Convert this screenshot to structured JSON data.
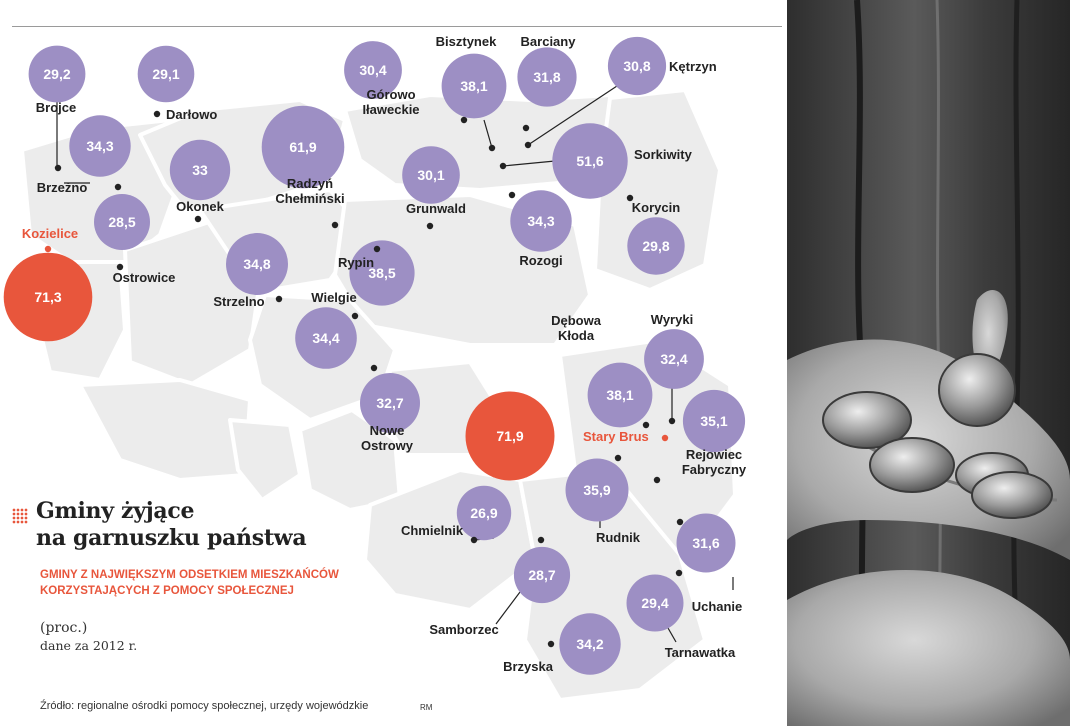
{
  "header": {
    "title_line1": "Gminy żyjące",
    "title_line2": "na garnuszku państwa",
    "subtitle": "GMINY Z NAJWIĘKSZYM ODSETKIEM MIESZKAŃCÓW KORZYSTAJĄCYCH Z POMOCY SPOŁECZNEJ",
    "unit": "(proc.)",
    "year_note": "dane za 2012 r."
  },
  "footer": {
    "source": "Źródło: regionalne ośrodki pomocy społecznej, urzędy wojewódzkie",
    "credit": "RM"
  },
  "colors": {
    "bubble": "#9d8fc4",
    "highlight": "#e8563c",
    "map_region": "#ececec",
    "label": "#222222"
  },
  "chart_data": {
    "type": "bubble-map",
    "title": "Gminy żyjące na garnuszku państwa",
    "subtitle": "GMINY Z NAJWIĘKSZYM ODSETKIEM MIESZKAŃCÓW KORZYSTAJĄCYCH Z POMOCY SPOŁECZNEJ",
    "unit": "proc.",
    "year": "2012",
    "series": [
      {
        "label": "Brojce",
        "value": "29,2"
      },
      {
        "label": "Darłowo",
        "value": "29,1"
      },
      {
        "label": "Brzeżno",
        "value": "34,3"
      },
      {
        "label": "Okonek",
        "value": "33"
      },
      {
        "label": "Ostrowice",
        "value": "28,5"
      },
      {
        "label": "Kozielice",
        "value": "71,3",
        "highlight": true
      },
      {
        "label": "Radzyń Chełmiński",
        "value": "61,9"
      },
      {
        "label": "Strzelno",
        "value": "34,8"
      },
      {
        "label": "Wielgie",
        "value": "34,4"
      },
      {
        "label": "Rypin",
        "value": "38,5"
      },
      {
        "label": "Nowe Ostrowy",
        "value": "32,7"
      },
      {
        "label": "Górowo Iławeckie",
        "value": "30,4"
      },
      {
        "label": "Bisztynek",
        "value": "38,1"
      },
      {
        "label": "Barciany",
        "value": "31,8"
      },
      {
        "label": "Kętrzyn",
        "value": "30,8"
      },
      {
        "label": "Grunwald",
        "value": "30,1"
      },
      {
        "label": "Sorkiwity",
        "value": "51,6"
      },
      {
        "label": "Rozogi",
        "value": "34,3"
      },
      {
        "label": "Korycin",
        "value": "29,8"
      },
      {
        "label": "Dębowa Kłoda",
        "value": "38,1"
      },
      {
        "label": "Wyryki",
        "value": "32,4"
      },
      {
        "label": "Stary Brus",
        "value": "71,9",
        "highlight": true
      },
      {
        "label": "Rejowiec Fabryczny",
        "value": "35,1"
      },
      {
        "label": "Rudnik",
        "value": "35,9"
      },
      {
        "label": "Chmielnik",
        "value": "26,9"
      },
      {
        "label": "Samborzec",
        "value": "28,7"
      },
      {
        "label": "Uchanie",
        "value": "31,6"
      },
      {
        "label": "Tarnawatka",
        "value": "29,4"
      },
      {
        "label": "Brzyska",
        "value": "34,2"
      }
    ]
  }
}
